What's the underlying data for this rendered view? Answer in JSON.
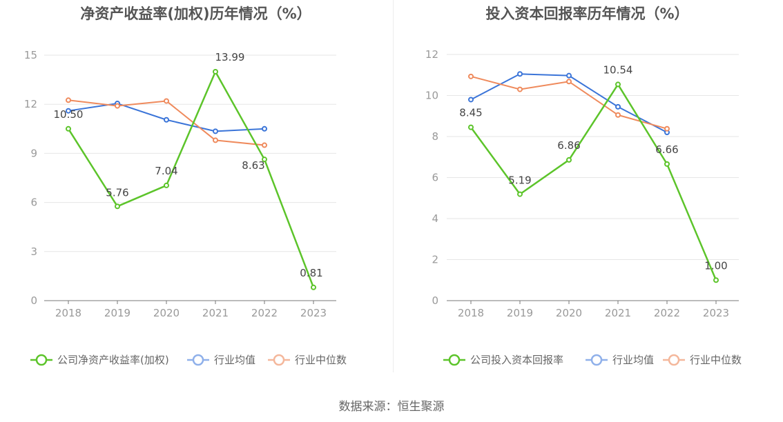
{
  "source": "数据来源：恒生聚源",
  "colors": {
    "company": "#5cc42a",
    "average": "#3a74d8",
    "median": "#ef8a5c",
    "average_legend": "#8fb0ea",
    "median_legend": "#f4b79b",
    "grid": "#e6e6e6",
    "axis": "#777777"
  },
  "chart_data": [
    {
      "type": "line",
      "title": "净资产收益率(加权)历年情况（%）",
      "x": [
        "2018",
        "2019",
        "2020",
        "2021",
        "2022",
        "2023"
      ],
      "ylim": [
        0,
        15
      ],
      "yticks": [
        0,
        3,
        6,
        9,
        12,
        15
      ],
      "grid": true,
      "legend_position": "bottom",
      "series": [
        {
          "name": "公司净资产收益率(加权)",
          "key": "company",
          "values": [
            10.5,
            5.76,
            7.04,
            13.99,
            8.63,
            0.81
          ],
          "labels": [
            "10.50",
            "5.76",
            "7.04",
            "13.99",
            "8.63",
            "0.81"
          ]
        },
        {
          "name": "行业均值",
          "key": "average",
          "values": [
            11.6,
            12.05,
            11.05,
            10.35,
            10.5,
            null
          ]
        },
        {
          "name": "行业中位数",
          "key": "median",
          "values": [
            12.25,
            11.9,
            12.2,
            9.8,
            9.5,
            null
          ]
        }
      ]
    },
    {
      "type": "line",
      "title": "投入资本回报率历年情况（%）",
      "x": [
        "2018",
        "2019",
        "2020",
        "2021",
        "2022",
        "2023"
      ],
      "ylim": [
        0,
        12
      ],
      "yticks": [
        0,
        2,
        4,
        6,
        8,
        10,
        12
      ],
      "grid": true,
      "legend_position": "bottom",
      "series": [
        {
          "name": "公司投入资本回报率",
          "key": "company",
          "values": [
            8.45,
            5.19,
            6.86,
            10.54,
            6.66,
            1.0
          ],
          "labels": [
            "8.45",
            "5.19",
            "6.86",
            "10.54",
            "6.66",
            "1.00"
          ]
        },
        {
          "name": "行业均值",
          "key": "average",
          "values": [
            9.8,
            11.05,
            10.97,
            9.45,
            8.2,
            null
          ]
        },
        {
          "name": "行业中位数",
          "key": "median",
          "values": [
            10.93,
            10.3,
            10.68,
            9.05,
            8.38,
            null
          ]
        }
      ]
    }
  ]
}
